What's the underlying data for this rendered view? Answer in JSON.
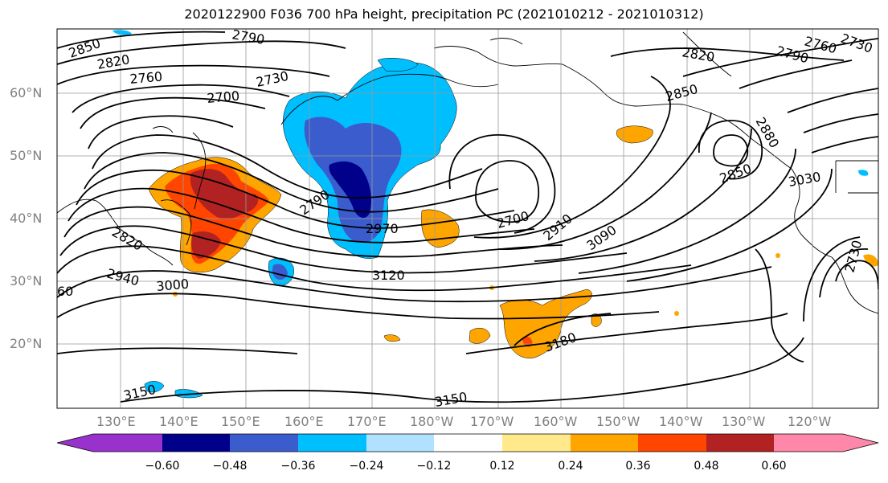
{
  "title": "2020122900 F036 700 hPa height, precipitation PC (2021010212 - 2021010312)",
  "lat_labels": [
    "60°N",
    "50°N",
    "40°N",
    "30°N",
    "20°N"
  ],
  "lon_labels": [
    "130°E",
    "140°E",
    "150°E",
    "160°E",
    "170°E",
    "180°W",
    "170°W",
    "160°W",
    "150°W",
    "140°W",
    "130°W",
    "120°W"
  ],
  "contour_labels": [
    "2850",
    "2820",
    "2790",
    "2760",
    "2730",
    "2700",
    "2790",
    "2970",
    "2700",
    "2910",
    "3090",
    "3120",
    "3000",
    "2940",
    "2820",
    "3150",
    "3150",
    "3180",
    "2850",
    "2820",
    "2790",
    "2760",
    "2730",
    "2850",
    "3030",
    "2880",
    "60"
  ],
  "colorbar": {
    "tick_labels": [
      "−0.60",
      "−0.48",
      "−0.36",
      "−0.24",
      "−0.12",
      "0.12",
      "0.24",
      "0.36",
      "0.48",
      "0.60"
    ],
    "colors": [
      "#9932cc",
      "#00008b",
      "#3a5ccc",
      "#00bfff",
      "#b0e2ff",
      "#ffffff",
      "#ffe98a",
      "#ffa500",
      "#ff4500",
      "#b22222",
      "#ff88aa"
    ]
  }
}
